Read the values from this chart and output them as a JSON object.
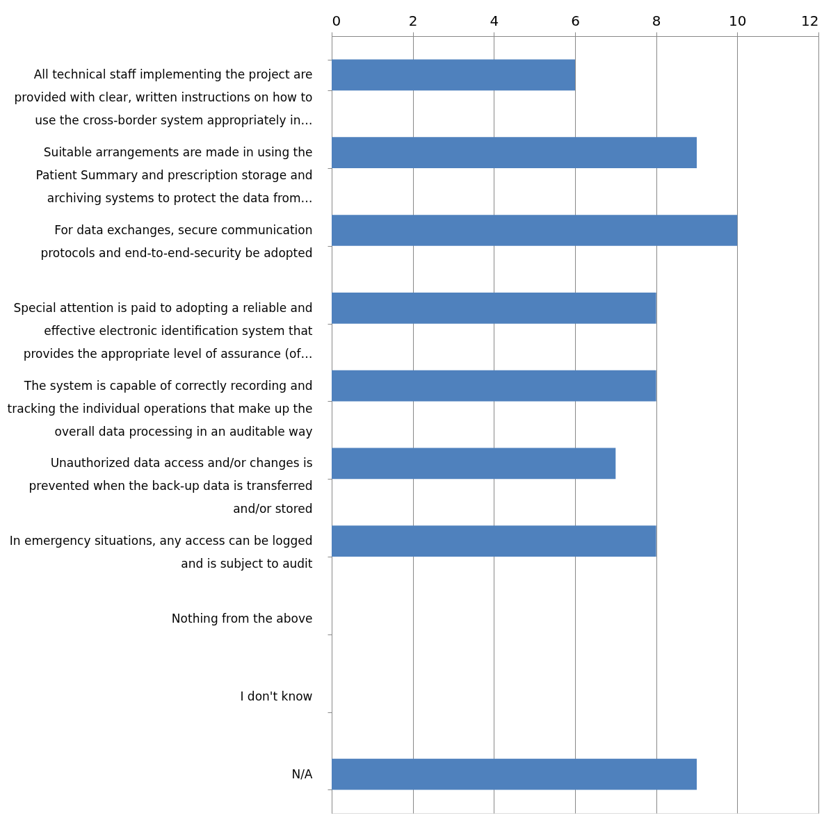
{
  "chart_data": {
    "type": "bar",
    "orientation": "horizontal",
    "categories": [
      "All technical staff implementing the project are\nprovided with clear, written instructions on how to\nuse the cross-border system appropriately in…",
      "Suitable arrangements are made in using the\nPatient Summary and prescription storage and\narchiving systems to protect the data from…",
      "For data exchanges, secure communication\nprotocols and end-to-end-security be adopted",
      "Special attention is paid to adopting a reliable and\neffective electronic identification system that\nprovides the appropriate level of assurance (of…",
      "The system is capable of correctly recording and\ntracking the individual operations that make up the\noverall data processing in an auditable way",
      "Unauthorized data access and/or changes is\nprevented when the back-up data is transferred\nand/or stored",
      "In emergency situations, any access can be logged\nand is subject to audit",
      "Nothing from the above",
      "I don't know",
      "N/A"
    ],
    "values": [
      6,
      9,
      10,
      8,
      8,
      7,
      8,
      0,
      0,
      9
    ],
    "color": "#4f81bd",
    "xlim": [
      0,
      12
    ],
    "xticks": [
      0,
      2,
      4,
      6,
      8,
      10,
      12
    ],
    "grid": "x"
  }
}
